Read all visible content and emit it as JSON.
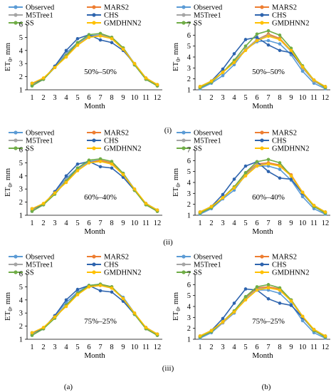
{
  "row_labels": [
    "(i)",
    "(ii)",
    "(iii)"
  ],
  "column_labels": [
    "(a)",
    "(b)"
  ],
  "legend_entries": [
    "Observed",
    "MARS2",
    "M5Tree1",
    "CHS",
    "SS",
    "GMDHNN2"
  ],
  "series_colors": {
    "Observed": "#5B9BD5",
    "MARS2": "#ED7D31",
    "M5Tree1": "#A5A5A5",
    "CHS": "#2E64AE",
    "SS": "#70AD47",
    "GMDHNN2": "#FFC000"
  },
  "chart_data": [
    {
      "type": "line",
      "panel": "(i)(a)",
      "annotation": "50%–50%",
      "xlabel": "Month",
      "ylabel": "ET0, mm",
      "x": [
        1,
        2,
        3,
        4,
        5,
        6,
        7,
        8,
        9,
        10,
        11,
        12
      ],
      "ylim": [
        1,
        6
      ],
      "yticks": [
        1,
        2,
        3,
        4,
        5,
        6
      ],
      "grid": false,
      "legend": "top",
      "series": [
        {
          "name": "Observed",
          "values": [
            1.3,
            1.8,
            2.8,
            3.8,
            4.6,
            5.1,
            5.2,
            4.9,
            4.2,
            3.0,
            1.8,
            1.3
          ]
        },
        {
          "name": "MARS2",
          "values": [
            1.4,
            1.8,
            2.7,
            3.6,
            4.5,
            5.0,
            5.2,
            5.0,
            4.2,
            2.9,
            1.8,
            1.3
          ]
        },
        {
          "name": "M5Tree1",
          "values": [
            1.4,
            1.8,
            2.7,
            3.7,
            4.5,
            5.0,
            5.2,
            4.9,
            4.1,
            2.9,
            1.8,
            1.3
          ]
        },
        {
          "name": "CHS",
          "values": [
            1.5,
            1.8,
            2.8,
            4.0,
            4.9,
            5.2,
            4.8,
            4.6,
            4.0,
            3.0,
            1.9,
            1.4
          ]
        },
        {
          "name": "SS",
          "values": [
            1.3,
            1.8,
            2.7,
            3.6,
            4.6,
            5.2,
            5.3,
            5.0,
            4.2,
            2.9,
            1.8,
            1.3
          ]
        },
        {
          "name": "GMDHNN2",
          "values": [
            1.5,
            1.9,
            2.7,
            3.5,
            4.4,
            5.0,
            5.1,
            4.9,
            4.1,
            3.0,
            1.9,
            1.4
          ]
        }
      ]
    },
    {
      "type": "line",
      "panel": "(i)(b)",
      "annotation": "50%–50%",
      "xlabel": "Month",
      "ylabel": "ET0, mm",
      "x": [
        1,
        2,
        3,
        4,
        5,
        6,
        7,
        8,
        9,
        10,
        11,
        12
      ],
      "ylim": [
        1,
        7
      ],
      "yticks": [
        1,
        2,
        3,
        4,
        5,
        6,
        7
      ],
      "grid": false,
      "legend": "top",
      "series": [
        {
          "name": "Observed",
          "values": [
            1.1,
            1.6,
            2.3,
            3.3,
            4.7,
            5.4,
            5.5,
            5.2,
            4.2,
            2.7,
            1.6,
            1.1
          ]
        },
        {
          "name": "MARS2",
          "values": [
            1.2,
            1.7,
            2.6,
            3.6,
            4.7,
            5.6,
            6.1,
            5.7,
            4.6,
            3.1,
            1.8,
            1.2
          ]
        },
        {
          "name": "M5Tree1",
          "values": [
            1.2,
            1.7,
            2.6,
            3.6,
            4.7,
            5.6,
            6.0,
            5.6,
            4.5,
            3.0,
            1.8,
            1.2
          ]
        },
        {
          "name": "CHS",
          "values": [
            1.3,
            1.8,
            2.9,
            4.3,
            5.6,
            5.8,
            5.1,
            4.6,
            4.4,
            3.1,
            1.9,
            1.3
          ]
        },
        {
          "name": "SS",
          "values": [
            1.2,
            1.7,
            2.6,
            3.7,
            5.0,
            6.1,
            6.4,
            6.0,
            4.8,
            3.2,
            1.9,
            1.2
          ]
        },
        {
          "name": "GMDHNN2",
          "values": [
            1.3,
            1.8,
            2.6,
            3.5,
            4.6,
            5.5,
            5.9,
            5.6,
            4.6,
            3.1,
            1.9,
            1.3
          ]
        }
      ]
    },
    {
      "type": "line",
      "panel": "(ii)(a)",
      "annotation": "60%–40%",
      "xlabel": "Month",
      "ylabel": "ET0, mm",
      "x": [
        1,
        2,
        3,
        4,
        5,
        6,
        7,
        8,
        9,
        10,
        11,
        12
      ],
      "ylim": [
        1,
        6
      ],
      "yticks": [
        1,
        2,
        3,
        4,
        5,
        6
      ],
      "grid": false,
      "legend": "top",
      "series": [
        {
          "name": "Observed",
          "values": [
            1.3,
            1.8,
            2.8,
            3.8,
            4.6,
            5.1,
            5.2,
            4.9,
            4.2,
            3.0,
            1.8,
            1.3
          ]
        },
        {
          "name": "MARS2",
          "values": [
            1.4,
            1.8,
            2.7,
            3.6,
            4.5,
            5.0,
            5.2,
            5.0,
            4.1,
            2.9,
            1.8,
            1.3
          ]
        },
        {
          "name": "M5Tree1",
          "values": [
            1.4,
            1.8,
            2.7,
            3.7,
            4.5,
            5.0,
            5.1,
            4.9,
            4.1,
            2.9,
            1.8,
            1.3
          ]
        },
        {
          "name": "CHS",
          "values": [
            1.5,
            1.8,
            2.8,
            4.0,
            4.9,
            5.1,
            4.7,
            4.6,
            3.9,
            2.9,
            1.9,
            1.4
          ]
        },
        {
          "name": "SS",
          "values": [
            1.3,
            1.8,
            2.6,
            3.6,
            4.6,
            5.2,
            5.3,
            5.1,
            4.2,
            2.9,
            1.8,
            1.3
          ]
        },
        {
          "name": "GMDHNN2",
          "values": [
            1.5,
            1.9,
            2.7,
            3.5,
            4.4,
            5.0,
            5.1,
            4.9,
            4.1,
            3.0,
            1.9,
            1.4
          ]
        }
      ]
    },
    {
      "type": "line",
      "panel": "(ii)(b)",
      "annotation": "60%–40%",
      "xlabel": "Month",
      "ylabel": "ET0, mm",
      "x": [
        1,
        2,
        3,
        4,
        5,
        6,
        7,
        8,
        9,
        10,
        11,
        12
      ],
      "ylim": [
        1,
        7
      ],
      "yticks": [
        1,
        2,
        3,
        4,
        5,
        6,
        7
      ],
      "grid": false,
      "legend": "top",
      "series": [
        {
          "name": "Observed",
          "values": [
            1.1,
            1.6,
            2.5,
            3.3,
            4.7,
            5.5,
            5.5,
            5.2,
            4.2,
            2.7,
            1.6,
            1.1
          ]
        },
        {
          "name": "MARS2",
          "values": [
            1.2,
            1.7,
            2.6,
            3.6,
            4.8,
            5.7,
            5.8,
            5.6,
            4.7,
            3.1,
            1.8,
            1.2
          ]
        },
        {
          "name": "M5Tree1",
          "values": [
            1.2,
            1.7,
            2.6,
            3.6,
            4.7,
            5.6,
            5.7,
            5.5,
            4.6,
            3.0,
            1.8,
            1.2
          ]
        },
        {
          "name": "CHS",
          "values": [
            1.3,
            1.8,
            2.9,
            4.3,
            5.5,
            5.9,
            5.0,
            4.4,
            4.3,
            3.0,
            1.9,
            1.3
          ]
        },
        {
          "name": "SS",
          "values": [
            1.2,
            1.7,
            2.6,
            3.6,
            4.9,
            5.9,
            6.1,
            5.8,
            4.6,
            3.1,
            1.8,
            1.2
          ]
        },
        {
          "name": "GMDHNN2",
          "values": [
            1.3,
            1.8,
            2.6,
            3.5,
            4.6,
            5.5,
            5.7,
            5.5,
            4.6,
            3.1,
            1.9,
            1.3
          ]
        }
      ]
    },
    {
      "type": "line",
      "panel": "(iii)(a)",
      "annotation": "75%–25%",
      "xlabel": "Month",
      "ylabel": "ET0, mm",
      "x": [
        1,
        2,
        3,
        4,
        5,
        6,
        7,
        8,
        9,
        10,
        11,
        12
      ],
      "ylim": [
        1,
        6
      ],
      "yticks": [
        1,
        2,
        3,
        4,
        5,
        6
      ],
      "grid": false,
      "legend": "top",
      "series": [
        {
          "name": "Observed",
          "values": [
            1.3,
            1.8,
            2.8,
            3.8,
            4.6,
            5.1,
            5.2,
            4.9,
            4.2,
            3.0,
            1.8,
            1.3
          ]
        },
        {
          "name": "MARS2",
          "values": [
            1.4,
            1.8,
            2.7,
            3.6,
            4.5,
            5.0,
            5.2,
            5.0,
            4.1,
            2.9,
            1.8,
            1.3
          ]
        },
        {
          "name": "M5Tree1",
          "values": [
            1.4,
            1.8,
            2.7,
            3.6,
            4.5,
            5.0,
            5.1,
            4.9,
            4.1,
            2.9,
            1.8,
            1.3
          ]
        },
        {
          "name": "CHS",
          "values": [
            1.5,
            1.8,
            2.8,
            4.0,
            4.8,
            5.1,
            4.7,
            4.6,
            3.9,
            2.9,
            1.9,
            1.4
          ]
        },
        {
          "name": "SS",
          "values": [
            1.3,
            1.8,
            2.6,
            3.6,
            4.5,
            5.1,
            5.2,
            5.0,
            4.1,
            2.9,
            1.8,
            1.3
          ]
        },
        {
          "name": "GMDHNN2",
          "values": [
            1.5,
            1.9,
            2.7,
            3.5,
            4.4,
            5.0,
            5.1,
            4.9,
            4.1,
            3.0,
            1.9,
            1.4
          ]
        }
      ]
    },
    {
      "type": "line",
      "panel": "(iii)(b)",
      "annotation": "75%–25%",
      "xlabel": "Month",
      "ylabel": "ET0, mm",
      "x": [
        1,
        2,
        3,
        4,
        5,
        6,
        7,
        8,
        9,
        10,
        11,
        12
      ],
      "ylim": [
        1,
        7
      ],
      "yticks": [
        1,
        2,
        3,
        4,
        5,
        6,
        7
      ],
      "grid": false,
      "legend": "top",
      "series": [
        {
          "name": "Observed",
          "values": [
            1.1,
            1.6,
            2.5,
            3.4,
            4.8,
            5.5,
            5.5,
            5.2,
            4.2,
            2.7,
            1.6,
            1.1
          ]
        },
        {
          "name": "MARS2",
          "values": [
            1.2,
            1.7,
            2.6,
            3.6,
            4.8,
            5.7,
            5.8,
            5.6,
            4.6,
            3.1,
            1.8,
            1.2
          ]
        },
        {
          "name": "M5Tree1",
          "values": [
            1.2,
            1.7,
            2.5,
            3.5,
            4.7,
            5.6,
            5.7,
            5.5,
            4.5,
            3.0,
            1.8,
            1.2
          ]
        },
        {
          "name": "CHS",
          "values": [
            1.3,
            1.8,
            2.9,
            4.3,
            5.6,
            5.5,
            4.7,
            4.3,
            4.1,
            3.0,
            1.9,
            1.3
          ]
        },
        {
          "name": "SS",
          "values": [
            1.2,
            1.7,
            2.6,
            3.6,
            4.9,
            5.8,
            6.0,
            5.7,
            4.6,
            3.1,
            1.8,
            1.2
          ]
        },
        {
          "name": "GMDHNN2",
          "values": [
            1.3,
            1.8,
            2.6,
            3.5,
            4.6,
            5.5,
            5.7,
            5.5,
            4.5,
            3.1,
            1.9,
            1.3
          ]
        }
      ]
    }
  ]
}
